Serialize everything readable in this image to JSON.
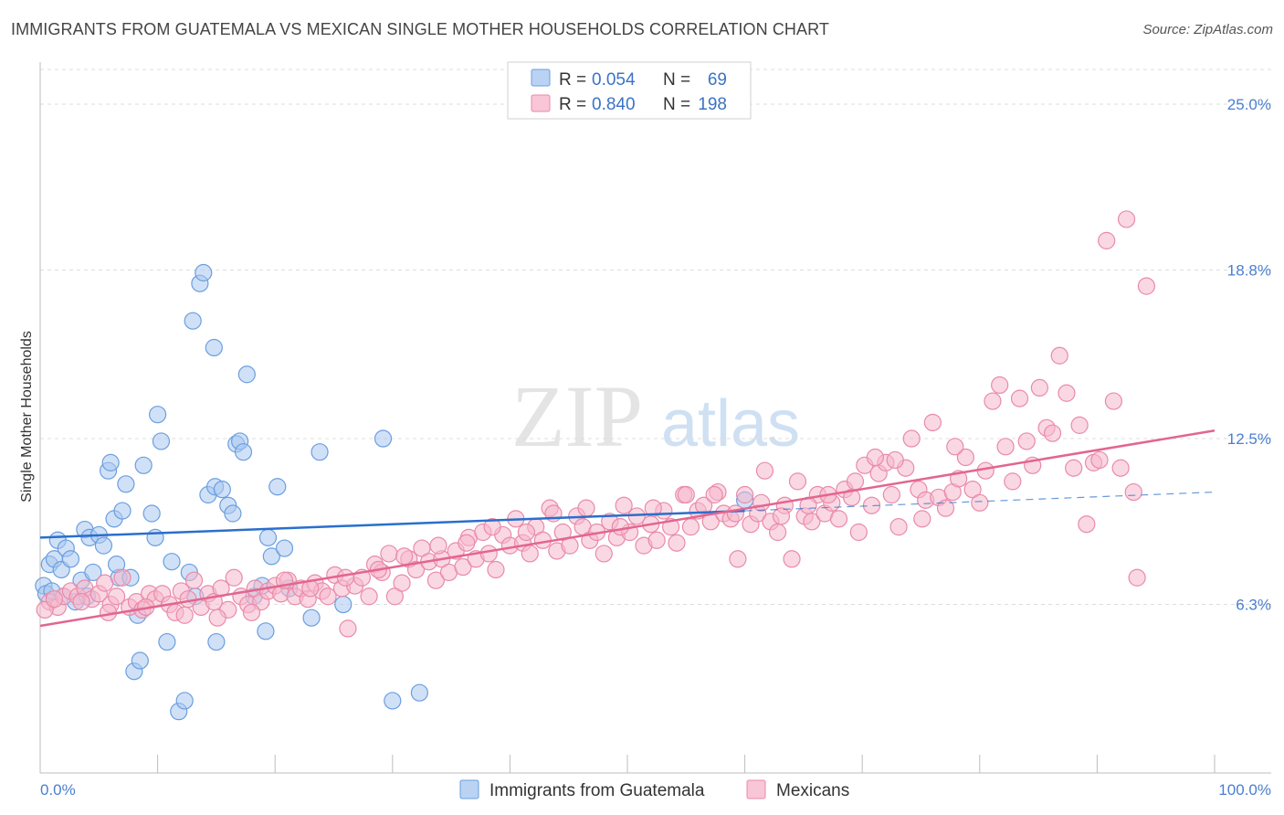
{
  "title": "IMMIGRANTS FROM GUATEMALA VS MEXICAN SINGLE MOTHER HOUSEHOLDS CORRELATION CHART",
  "source": "Source: ZipAtlas.com",
  "watermark": {
    "zip": "ZIP",
    "atlas": "atlas"
  },
  "colors": {
    "blue_fill": "#a9c8f0",
    "blue_stroke": "#6b9ee0",
    "blue_line": "#2a6fcc",
    "pink_fill": "#f6b8cc",
    "pink_stroke": "#e98aa9",
    "pink_line": "#e2668f",
    "tick_text": "#4a7fd0",
    "grid": "#dcdcdc"
  },
  "legend": [
    {
      "r_label": "R =",
      "r_value": "0.054",
      "n_label": "N =",
      "n_value": "69"
    },
    {
      "r_label": "R =",
      "r_value": "0.840",
      "n_label": "N =",
      "n_value": "198"
    }
  ],
  "chart_data": {
    "type": "scatter",
    "title": "IMMIGRANTS FROM GUATEMALA VS MEXICAN SINGLE MOTHER HOUSEHOLDS CORRELATION CHART",
    "xlabel": "",
    "ylabel": "Single Mother Households",
    "xlim": [
      0,
      100
    ],
    "ylim": [
      0,
      26.3
    ],
    "x_tick_labels": [
      "0.0%",
      "100.0%"
    ],
    "y_ticks": [
      6.3,
      12.5,
      18.8,
      25.0
    ],
    "y_tick_labels": [
      "6.3%",
      "12.5%",
      "18.8%",
      "25.0%"
    ],
    "grid": "horizontal dashed",
    "legend_position": "top-center",
    "series": [
      {
        "name": "Immigrants from Guatemala",
        "color": "#a9c8f0",
        "r": 0.054,
        "n": 69,
        "trend": {
          "x": [
            0,
            60
          ],
          "y": [
            8.8,
            9.8
          ]
        },
        "trend_extended": {
          "x": [
            60,
            100
          ],
          "y": [
            9.8,
            10.5
          ]
        },
        "points": [
          [
            0.3,
            7.0
          ],
          [
            0.5,
            6.7
          ],
          [
            0.8,
            7.8
          ],
          [
            1.2,
            8.0
          ],
          [
            1.5,
            8.7
          ],
          [
            1.8,
            7.6
          ],
          [
            2.2,
            8.4
          ],
          [
            2.6,
            8.0
          ],
          [
            3.0,
            6.4
          ],
          [
            3.5,
            7.2
          ],
          [
            3.8,
            9.1
          ],
          [
            4.2,
            8.8
          ],
          [
            4.5,
            7.5
          ],
          [
            5.0,
            8.9
          ],
          [
            5.4,
            8.5
          ],
          [
            5.8,
            11.3
          ],
          [
            6.0,
            11.6
          ],
          [
            6.3,
            9.5
          ],
          [
            6.7,
            7.3
          ],
          [
            7.0,
            9.8
          ],
          [
            7.3,
            10.8
          ],
          [
            7.7,
            7.3
          ],
          [
            8.0,
            3.8
          ],
          [
            8.3,
            5.9
          ],
          [
            8.5,
            4.2
          ],
          [
            8.8,
            11.5
          ],
          [
            9.5,
            9.7
          ],
          [
            9.8,
            8.8
          ],
          [
            10.0,
            13.4
          ],
          [
            10.3,
            12.4
          ],
          [
            10.8,
            4.9
          ],
          [
            11.2,
            7.9
          ],
          [
            11.8,
            2.3
          ],
          [
            12.3,
            2.7
          ],
          [
            12.7,
            7.5
          ],
          [
            13.2,
            6.6
          ],
          [
            13.0,
            16.9
          ],
          [
            13.6,
            18.3
          ],
          [
            13.9,
            18.7
          ],
          [
            14.3,
            10.4
          ],
          [
            14.8,
            15.9
          ],
          [
            14.9,
            10.7
          ],
          [
            15.0,
            4.9
          ],
          [
            15.5,
            10.6
          ],
          [
            16.0,
            10.0
          ],
          [
            16.4,
            9.7
          ],
          [
            16.7,
            12.3
          ],
          [
            17.0,
            12.4
          ],
          [
            17.3,
            12.0
          ],
          [
            17.6,
            14.9
          ],
          [
            18.2,
            6.6
          ],
          [
            18.9,
            7.0
          ],
          [
            19.2,
            5.3
          ],
          [
            19.4,
            8.8
          ],
          [
            19.7,
            8.1
          ],
          [
            20.2,
            10.7
          ],
          [
            20.8,
            8.4
          ],
          [
            21.2,
            6.9
          ],
          [
            23.1,
            5.8
          ],
          [
            23.8,
            12.0
          ],
          [
            25.8,
            6.3
          ],
          [
            29.2,
            12.5
          ],
          [
            30.0,
            2.7
          ],
          [
            32.3,
            3.0
          ],
          [
            60.0,
            10.2
          ],
          [
            1.0,
            6.8
          ],
          [
            2.0,
            6.6
          ],
          [
            4.0,
            6.6
          ],
          [
            6.5,
            7.8
          ]
        ]
      },
      {
        "name": "Mexicans",
        "color": "#f6b8cc",
        "r": 0.84,
        "n": 198,
        "trend": {
          "x": [
            0,
            100
          ],
          "y": [
            5.5,
            12.8
          ]
        },
        "points": [
          [
            0.8,
            6.4
          ],
          [
            1.5,
            6.2
          ],
          [
            2.0,
            6.6
          ],
          [
            2.6,
            6.8
          ],
          [
            3.2,
            6.6
          ],
          [
            3.8,
            6.9
          ],
          [
            4.4,
            6.5
          ],
          [
            5.0,
            6.7
          ],
          [
            5.5,
            7.1
          ],
          [
            6.0,
            6.3
          ],
          [
            6.5,
            6.6
          ],
          [
            7.0,
            7.3
          ],
          [
            7.6,
            6.2
          ],
          [
            8.2,
            6.4
          ],
          [
            8.7,
            6.1
          ],
          [
            9.3,
            6.7
          ],
          [
            9.8,
            6.5
          ],
          [
            10.4,
            6.7
          ],
          [
            11.0,
            6.3
          ],
          [
            11.5,
            6.0
          ],
          [
            12.0,
            6.8
          ],
          [
            12.6,
            6.5
          ],
          [
            13.1,
            7.2
          ],
          [
            13.7,
            6.2
          ],
          [
            14.3,
            6.7
          ],
          [
            14.8,
            6.4
          ],
          [
            15.4,
            6.9
          ],
          [
            16.0,
            6.1
          ],
          [
            16.5,
            7.3
          ],
          [
            17.1,
            6.6
          ],
          [
            17.7,
            6.3
          ],
          [
            18.3,
            6.9
          ],
          [
            18.8,
            6.4
          ],
          [
            19.4,
            6.8
          ],
          [
            20.0,
            7.0
          ],
          [
            20.5,
            6.7
          ],
          [
            21.1,
            7.2
          ],
          [
            21.7,
            6.6
          ],
          [
            22.2,
            6.9
          ],
          [
            22.8,
            6.5
          ],
          [
            23.4,
            7.1
          ],
          [
            24.0,
            6.8
          ],
          [
            24.5,
            6.6
          ],
          [
            25.1,
            7.4
          ],
          [
            25.7,
            6.9
          ],
          [
            26.2,
            5.4
          ],
          [
            26.8,
            7.0
          ],
          [
            27.4,
            7.3
          ],
          [
            28.0,
            6.6
          ],
          [
            28.5,
            7.8
          ],
          [
            29.1,
            7.5
          ],
          [
            29.7,
            8.2
          ],
          [
            30.2,
            6.6
          ],
          [
            30.8,
            7.1
          ],
          [
            31.4,
            8.0
          ],
          [
            32.0,
            7.6
          ],
          [
            32.5,
            8.4
          ],
          [
            33.1,
            7.9
          ],
          [
            33.7,
            7.2
          ],
          [
            34.2,
            8.0
          ],
          [
            34.8,
            7.5
          ],
          [
            35.4,
            8.3
          ],
          [
            36.0,
            7.7
          ],
          [
            36.5,
            8.8
          ],
          [
            37.1,
            8.0
          ],
          [
            37.7,
            9.0
          ],
          [
            38.2,
            8.2
          ],
          [
            38.8,
            7.6
          ],
          [
            39.4,
            8.9
          ],
          [
            40.0,
            8.5
          ],
          [
            40.5,
            9.5
          ],
          [
            41.1,
            8.6
          ],
          [
            41.7,
            8.2
          ],
          [
            42.2,
            9.2
          ],
          [
            42.8,
            8.7
          ],
          [
            43.4,
            9.9
          ],
          [
            44.0,
            8.3
          ],
          [
            44.5,
            9.0
          ],
          [
            45.1,
            8.5
          ],
          [
            45.7,
            9.6
          ],
          [
            46.2,
            9.2
          ],
          [
            46.8,
            8.7
          ],
          [
            47.4,
            9.0
          ],
          [
            48.0,
            8.2
          ],
          [
            48.5,
            9.4
          ],
          [
            49.1,
            8.8
          ],
          [
            49.7,
            10.0
          ],
          [
            50.2,
            9.0
          ],
          [
            50.8,
            9.6
          ],
          [
            51.4,
            8.5
          ],
          [
            52.0,
            9.3
          ],
          [
            52.5,
            8.7
          ],
          [
            53.1,
            9.8
          ],
          [
            53.7,
            9.2
          ],
          [
            54.2,
            8.6
          ],
          [
            54.8,
            10.4
          ],
          [
            55.4,
            9.2
          ],
          [
            56.0,
            9.8
          ],
          [
            56.5,
            10.0
          ],
          [
            57.1,
            9.4
          ],
          [
            57.7,
            10.5
          ],
          [
            58.2,
            9.7
          ],
          [
            58.8,
            9.5
          ],
          [
            59.4,
            8.0
          ],
          [
            60.0,
            10.4
          ],
          [
            60.5,
            9.3
          ],
          [
            61.1,
            9.7
          ],
          [
            61.7,
            11.3
          ],
          [
            62.2,
            9.4
          ],
          [
            62.8,
            9.0
          ],
          [
            63.4,
            10.0
          ],
          [
            64.0,
            8.0
          ],
          [
            64.5,
            10.9
          ],
          [
            65.1,
            9.6
          ],
          [
            65.7,
            9.4
          ],
          [
            66.2,
            10.4
          ],
          [
            66.8,
            9.7
          ],
          [
            67.4,
            10.1
          ],
          [
            68.0,
            9.5
          ],
          [
            68.5,
            10.6
          ],
          [
            69.1,
            10.3
          ],
          [
            69.7,
            9.0
          ],
          [
            70.2,
            11.5
          ],
          [
            70.8,
            10.0
          ],
          [
            71.4,
            11.2
          ],
          [
            72.0,
            11.6
          ],
          [
            72.5,
            10.4
          ],
          [
            73.1,
            9.2
          ],
          [
            73.7,
            11.4
          ],
          [
            74.2,
            12.5
          ],
          [
            74.8,
            10.6
          ],
          [
            75.4,
            10.2
          ],
          [
            76.0,
            13.1
          ],
          [
            76.5,
            10.3
          ],
          [
            77.1,
            9.9
          ],
          [
            77.7,
            10.5
          ],
          [
            78.2,
            11.0
          ],
          [
            78.8,
            11.8
          ],
          [
            79.4,
            10.6
          ],
          [
            80.0,
            10.1
          ],
          [
            80.5,
            11.3
          ],
          [
            81.1,
            13.9
          ],
          [
            81.7,
            14.5
          ],
          [
            82.2,
            12.2
          ],
          [
            82.8,
            10.9
          ],
          [
            83.4,
            14.0
          ],
          [
            84.0,
            12.4
          ],
          [
            84.5,
            11.5
          ],
          [
            85.1,
            14.4
          ],
          [
            85.7,
            12.9
          ],
          [
            86.2,
            12.7
          ],
          [
            86.8,
            15.6
          ],
          [
            87.4,
            14.2
          ],
          [
            88.0,
            11.4
          ],
          [
            88.5,
            13.0
          ],
          [
            89.1,
            9.3
          ],
          [
            89.7,
            11.6
          ],
          [
            90.2,
            11.7
          ],
          [
            90.8,
            19.9
          ],
          [
            91.4,
            13.9
          ],
          [
            92.0,
            11.4
          ],
          [
            92.5,
            20.7
          ],
          [
            93.4,
            7.3
          ],
          [
            93.1,
            10.5
          ],
          [
            94.2,
            18.2
          ],
          [
            0.4,
            6.1
          ],
          [
            1.2,
            6.5
          ],
          [
            3.5,
            6.4
          ],
          [
            5.8,
            6.0
          ],
          [
            9.0,
            6.2
          ],
          [
            12.3,
            5.9
          ],
          [
            15.1,
            5.8
          ],
          [
            18.0,
            6.0
          ],
          [
            20.8,
            7.2
          ],
          [
            23.0,
            6.9
          ],
          [
            26.0,
            7.3
          ],
          [
            28.8,
            7.6
          ],
          [
            31.0,
            8.1
          ],
          [
            33.9,
            8.5
          ],
          [
            36.3,
            8.6
          ],
          [
            38.5,
            9.2
          ],
          [
            41.4,
            9.0
          ],
          [
            43.7,
            9.7
          ],
          [
            46.5,
            9.9
          ],
          [
            49.4,
            9.2
          ],
          [
            52.2,
            9.9
          ],
          [
            55.0,
            10.4
          ],
          [
            57.4,
            10.4
          ],
          [
            59.2,
            9.7
          ],
          [
            61.4,
            10.1
          ],
          [
            63.1,
            9.6
          ],
          [
            65.4,
            10.0
          ],
          [
            67.1,
            10.4
          ],
          [
            69.4,
            10.9
          ],
          [
            71.1,
            11.8
          ],
          [
            72.8,
            11.7
          ],
          [
            75.1,
            9.5
          ],
          [
            77.9,
            12.2
          ]
        ]
      }
    ]
  },
  "bottom_legend": [
    "Immigrants from Guatemala",
    "Mexicans"
  ]
}
